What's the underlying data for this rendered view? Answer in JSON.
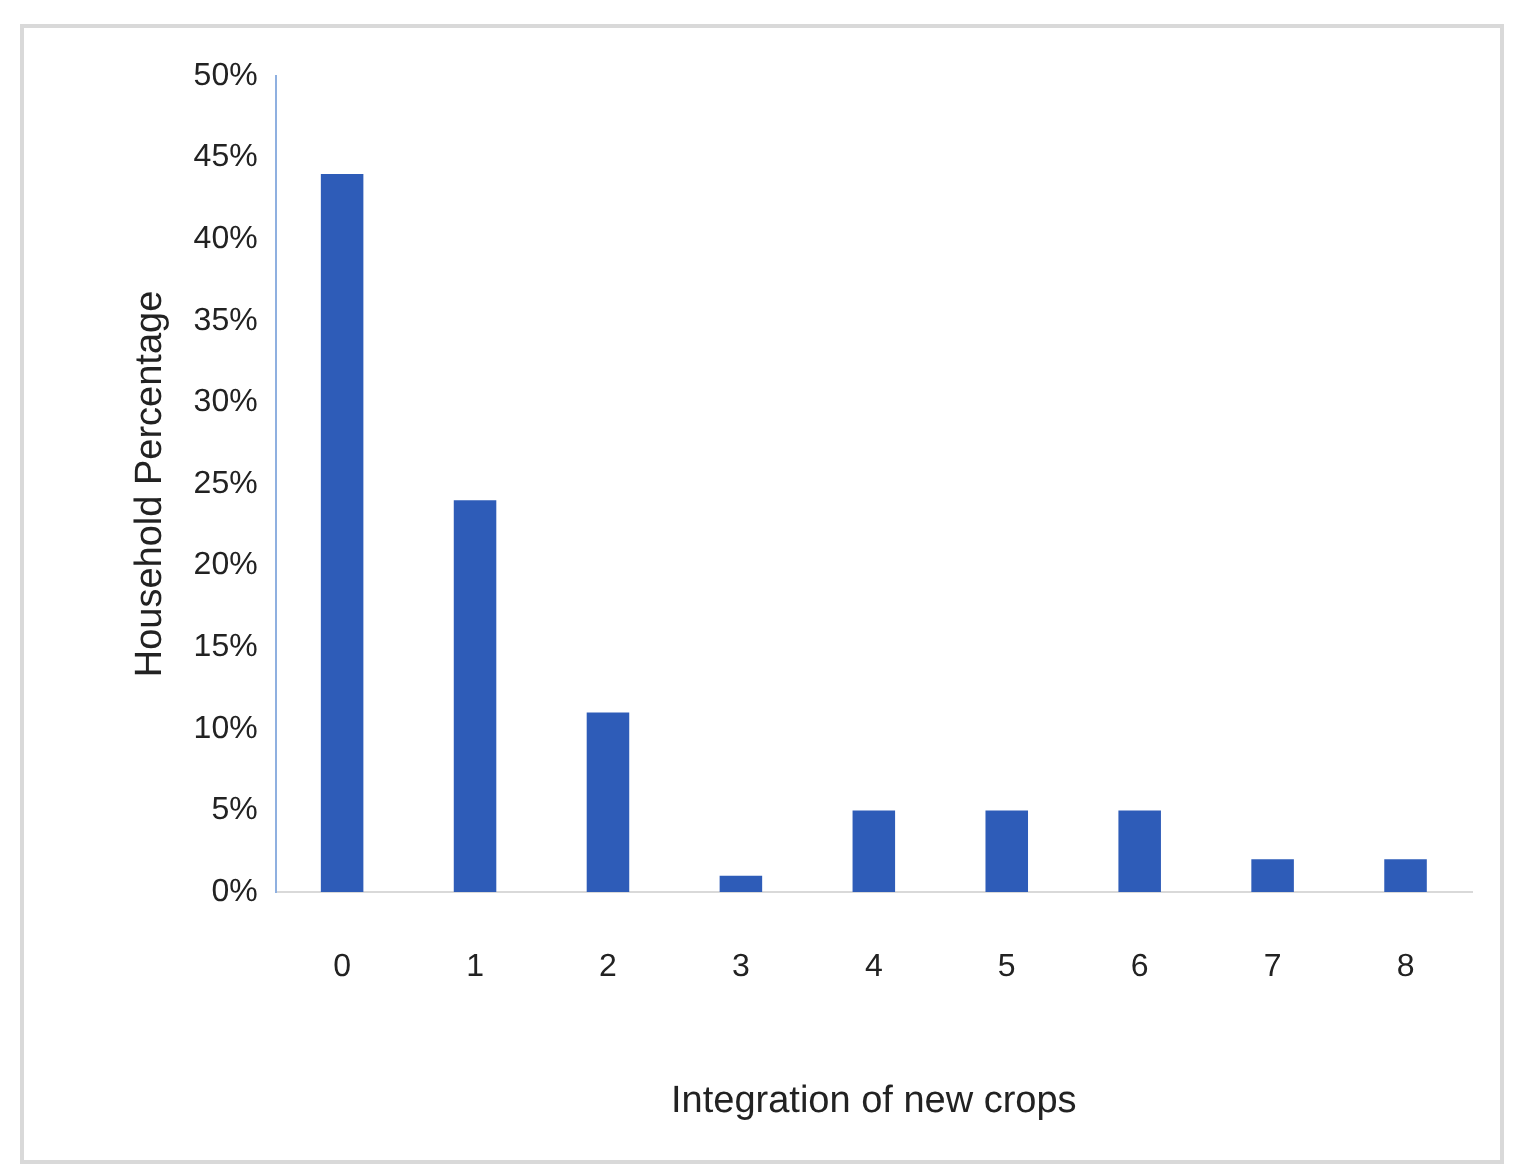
{
  "chart_data": {
    "type": "bar",
    "xlabel": "Integration of new crops",
    "ylabel": "Household Percentage",
    "categories": [
      "0",
      "1",
      "2",
      "3",
      "4",
      "5",
      "6",
      "7",
      "8"
    ],
    "values": [
      44,
      24,
      11,
      1,
      5,
      5,
      5,
      2,
      2
    ],
    "color": "#2e5cb8",
    "ylim": [
      0,
      50
    ],
    "yticks": [
      {
        "value": 0,
        "label": "0%"
      },
      {
        "value": 5,
        "label": "5%"
      },
      {
        "value": 10,
        "label": "10%"
      },
      {
        "value": 15,
        "label": "15%"
      },
      {
        "value": 20,
        "label": "20%"
      },
      {
        "value": 25,
        "label": "25%"
      },
      {
        "value": 30,
        "label": "30%"
      },
      {
        "value": 35,
        "label": "35%"
      },
      {
        "value": 40,
        "label": "40%"
      },
      {
        "value": 45,
        "label": "45%"
      },
      {
        "value": 50,
        "label": "50%"
      }
    ],
    "grid": false,
    "legend": false
  }
}
